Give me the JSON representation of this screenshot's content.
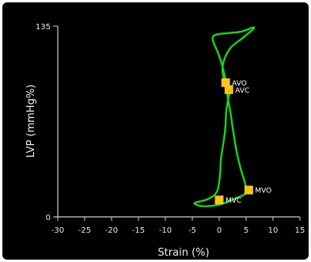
{
  "chart_data": {
    "type": "line",
    "title": "",
    "xlabel": "Strain (%)",
    "ylabel": "LVP (mmHg%)",
    "xlim": [
      -30,
      15
    ],
    "ylim": [
      0,
      135
    ],
    "x_ticks": [
      "-30",
      "-25",
      "-20",
      "-15",
      "-10",
      "-5",
      "0",
      "5",
      "10",
      "15"
    ],
    "y_ticks": [
      "0",
      "135"
    ],
    "grid": false,
    "colors": {
      "background": "#000000",
      "curve": "#12d71f",
      "marker": "#ffc20e",
      "axis": "#cfcfcf",
      "text": "#f0f0f0"
    },
    "series": [
      {
        "x": [
          2.0,
          1.6,
          1.3,
          1.2,
          1.0,
          0.6,
          0.3,
          0.2,
          0.0,
          -0.3,
          -1.0,
          -2.5,
          -4.5,
          -4.2,
          -3.0,
          -1.0,
          0.8,
          3.0,
          5.0,
          4.8,
          4.0,
          3.3,
          2.8,
          2.4,
          2.0,
          1.6,
          1.4,
          1.0,
          0.5,
          -0.2,
          -1.0,
          -1.2,
          -0.5,
          1.5,
          4.0,
          6.5,
          4.5,
          2.2,
          1.0,
          0.6,
          1.0,
          1.4,
          1.8,
          2.0
        ],
        "y": [
          88,
          82,
          74,
          66,
          58,
          48,
          40,
          32,
          25,
          19,
          15,
          12,
          10,
          8.5,
          7.5,
          8,
          9.5,
          13,
          17,
          24,
          34,
          45,
          56,
          66,
          76,
          84,
          92,
          100,
          108,
          116,
          123,
          127,
          129,
          130,
          131,
          134,
          127,
          120,
          112,
          104,
          96,
          93,
          90,
          88
        ]
      }
    ],
    "annotations": [
      {
        "label": "AVO",
        "x": 1.2,
        "y": 95
      },
      {
        "label": "AVC",
        "x": 1.8,
        "y": 90
      },
      {
        "label": "MVO",
        "x": 5.5,
        "y": 19
      },
      {
        "label": "MVC",
        "x": 0.0,
        "y": 12
      }
    ]
  }
}
